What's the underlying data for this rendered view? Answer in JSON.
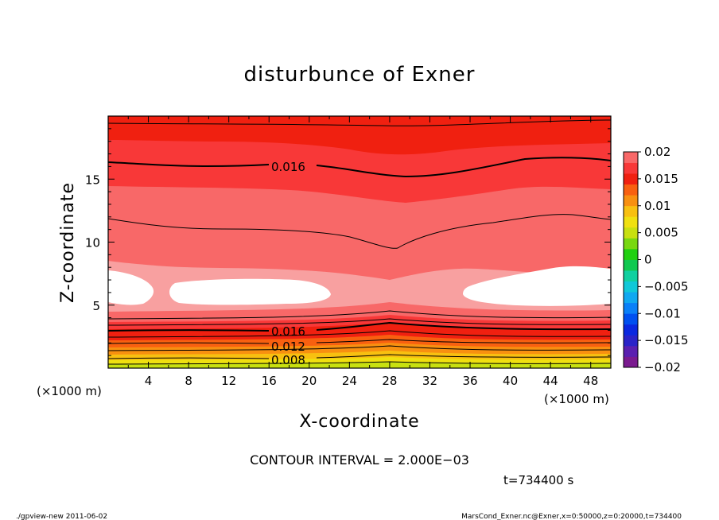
{
  "chart_data": {
    "type": "heatmap",
    "subtype": "filled-contour",
    "title": "disturbunce of Exner",
    "xlabel": "X-coordinate",
    "ylabel": "Z-coordinate",
    "x_unit": "(×1000 m)",
    "y_unit": "(×1000 m)",
    "xlim": [
      0,
      50
    ],
    "ylim": [
      0,
      20
    ],
    "x_ticks": [
      "4",
      "8",
      "12",
      "16",
      "20",
      "24",
      "28",
      "32",
      "36",
      "40",
      "44",
      "48"
    ],
    "y_ticks": [
      "5",
      "10",
      "15"
    ],
    "colorbar": {
      "ticks": [
        "0.02",
        "0.015",
        "0.01",
        "0.005",
        "0",
        "−0.005",
        "−0.01",
        "−0.015",
        "−0.02"
      ],
      "levels": [
        -0.02,
        -0.018,
        -0.016,
        -0.014,
        -0.012,
        -0.01,
        -0.008,
        -0.006,
        -0.004,
        -0.002,
        0,
        0.002,
        0.004,
        0.006,
        0.008,
        0.01,
        0.012,
        0.014,
        0.016,
        0.018,
        0.02
      ],
      "colors": [
        "#7a1a8f",
        "#5a1fb0",
        "#2a23c8",
        "#0a28e0",
        "#0050f0",
        "#0a80f8",
        "#10a8f0",
        "#10c8d8",
        "#10d0a0",
        "#10c850",
        "#20d010",
        "#78d810",
        "#c8e010",
        "#f0e010",
        "#f8c010",
        "#f89010",
        "#f86010",
        "#f02010",
        "#f83838",
        "#f86868",
        "#f8a0a0"
      ]
    },
    "contour_labels": [
      "0.016",
      "0.016",
      "0.012",
      "0.008"
    ],
    "interval_text": "CONTOUR INTERVAL = 2.000E−03",
    "time_text": "t=734400 s"
  },
  "footer": {
    "left": "./gpview-new  2011-06-02",
    "right": "MarsCond_Exner.nc@Exner,x=0:50000,z=0:20000,t=734400"
  }
}
